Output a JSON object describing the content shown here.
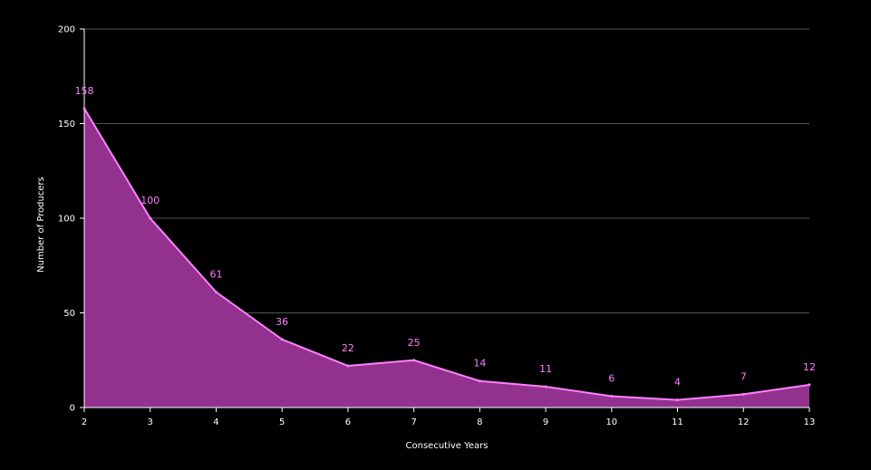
{
  "chart_data": {
    "type": "area",
    "title": "",
    "xlabel": "Consecutive Years",
    "ylabel": "Number of Producers",
    "x": [
      2,
      3,
      4,
      5,
      6,
      7,
      8,
      9,
      10,
      11,
      12,
      13
    ],
    "x_tick_labels": [
      "2",
      "3",
      "4",
      "5",
      "6",
      "7",
      "8",
      "9",
      "10",
      "11",
      "12",
      "13"
    ],
    "values": [
      158,
      100,
      61,
      36,
      22,
      25,
      14,
      11,
      6,
      4,
      7,
      12
    ],
    "value_labels": [
      "158",
      "100",
      "61",
      "36",
      "22",
      "25",
      "14",
      "11",
      "6",
      "4",
      "7",
      "12"
    ],
    "xlim": [
      2,
      13
    ],
    "ylim": [
      0,
      200
    ],
    "y_ticks": [
      0,
      50,
      100,
      150,
      200
    ],
    "y_tick_labels": [
      "0",
      "50",
      "100",
      "150",
      "200"
    ],
    "grid": "horizontal",
    "legend": "none",
    "colors": {
      "background": "#000000",
      "fill": "#93318f",
      "line": "#ff80ff",
      "label": "#ff7fff",
      "grid": "#555555",
      "axis": "#ffffff"
    }
  }
}
